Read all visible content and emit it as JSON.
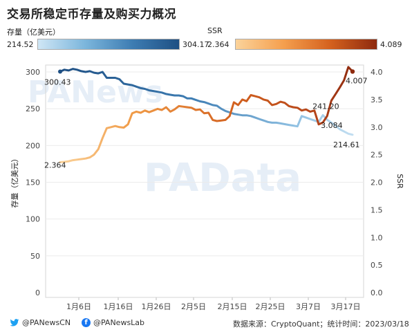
{
  "title": "交易所稳定币存量及购买力概况",
  "legend_left": {
    "name": "存量（亿美元）",
    "min": "214.52",
    "max": "304.17"
  },
  "legend_right": {
    "name": "SSR",
    "min": "2.364",
    "max": "4.089"
  },
  "watermark": {
    "top": "PANews",
    "center": "PAData"
  },
  "footer": {
    "twitter": "@PANewsCN",
    "facebook": "@PANewsLab",
    "source": "数据来源：CryptoQuant；统计时间：2023/03/18"
  },
  "colors": {
    "stock_dark": "#1e4f83",
    "stock_light": "#a9d0ea",
    "ssr_light": "#f7b469",
    "ssr_dark": "#8e2a0e"
  },
  "chart_data": {
    "type": "line",
    "x_labels": [
      "1月6日",
      "1月16日",
      "1月26日",
      "2月5日",
      "2月15日",
      "2月25日",
      "3月7日",
      "3月17日"
    ],
    "y_left": {
      "label": "存量（亿美元）",
      "ticks": [
        0,
        50,
        100,
        150,
        200,
        250,
        300
      ],
      "ylim": [
        0,
        310
      ]
    },
    "y_right": {
      "label": "SSR",
      "ticks": [
        "0.0",
        "0.5",
        "1.0",
        "1.5",
        "2.0",
        "2.5",
        "3.0",
        "3.5",
        "4.0"
      ],
      "ylim": [
        0,
        4.13
      ]
    },
    "series": [
      {
        "axis": "left",
        "values": [
          300.43,
          303,
          302,
          304.17,
          303,
          301,
          300,
          301,
          299,
          298,
          300,
          292,
          292,
          292,
          290,
          284,
          283,
          282,
          280,
          278,
          277,
          275,
          274,
          273,
          272,
          270,
          269,
          268,
          268,
          267,
          264,
          264,
          262,
          260,
          259,
          257,
          255,
          254,
          250,
          247,
          245,
          243,
          242,
          241,
          241,
          240,
          238,
          236,
          234,
          232,
          231,
          231,
          230,
          229,
          228,
          227,
          226,
          240,
          238,
          236,
          234,
          232,
          241.2,
          235,
          231,
          227,
          222,
          219,
          216,
          214.61
        ]
      },
      {
        "axis": "right",
        "values": [
          2.364,
          2.37,
          2.38,
          2.4,
          2.41,
          2.42,
          2.43,
          2.45,
          2.5,
          2.6,
          2.8,
          2.98,
          3.0,
          3.02,
          3.0,
          2.99,
          3.05,
          3.25,
          3.28,
          3.26,
          3.3,
          3.27,
          3.3,
          3.33,
          3.31,
          3.36,
          3.28,
          3.32,
          3.38,
          3.37,
          3.36,
          3.35,
          3.31,
          3.32,
          3.25,
          3.26,
          3.13,
          3.11,
          3.12,
          3.13,
          3.2,
          3.45,
          3.4,
          3.5,
          3.47,
          3.58,
          3.56,
          3.54,
          3.5,
          3.48,
          3.4,
          3.42,
          3.46,
          3.44,
          3.38,
          3.36,
          3.35,
          3.3,
          3.32,
          3.28,
          3.3,
          3.05,
          3.084,
          3.2,
          3.48,
          3.6,
          3.72,
          3.85,
          4.089,
          4.007
        ]
      }
    ],
    "annotations": [
      {
        "text": "300.43",
        "series": 0,
        "index": 0
      },
      {
        "text": "2.364",
        "series": 1,
        "index": 0
      },
      {
        "text": "241.20",
        "series": 0,
        "index": 62
      },
      {
        "text": "3.084",
        "series": 1,
        "index": 62
      },
      {
        "text": "214.61",
        "series": 0,
        "index": 69
      },
      {
        "text": "4.007",
        "series": 1,
        "index": 69
      }
    ],
    "grid": true,
    "legend_position": "top"
  }
}
